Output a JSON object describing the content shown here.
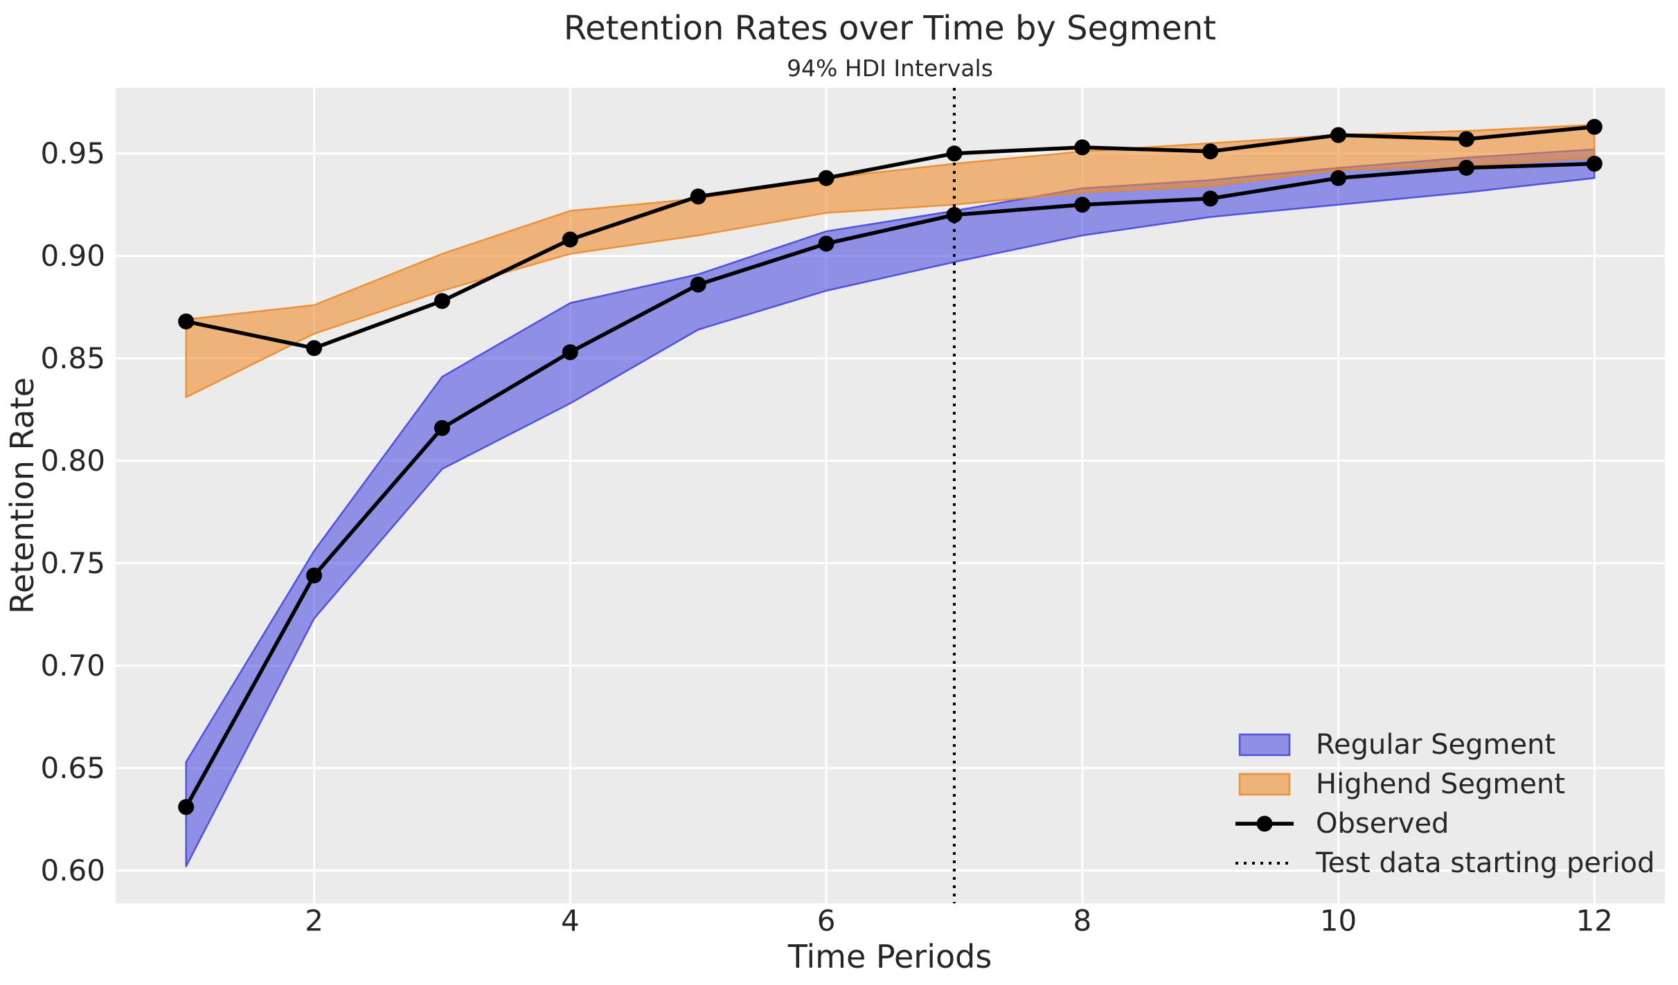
{
  "title": "Retention Rates over Time by Segment",
  "subtitle": "94% HDI Intervals",
  "chart_data": {
    "type": "line",
    "title": "Retention Rates over Time by Segment",
    "subtitle": "94% HDI Intervals",
    "xlabel": "Time Periods",
    "ylabel": "Retention Rate",
    "xlim": [
      0.45,
      12.55
    ],
    "ylim": [
      0.584,
      0.982
    ],
    "xticks": [
      2,
      4,
      6,
      8,
      10,
      12
    ],
    "ytick_values": [
      0.6,
      0.65,
      0.7,
      0.75,
      0.8,
      0.85,
      0.9,
      0.95
    ],
    "ytick_labels": [
      "0.60",
      "0.65",
      "0.70",
      "0.75",
      "0.80",
      "0.85",
      "0.90",
      "0.95"
    ],
    "grid": true,
    "legend_position": "lower right",
    "x": [
      1,
      2,
      3,
      4,
      5,
      6,
      7,
      8,
      9,
      10,
      11,
      12
    ],
    "bands": [
      {
        "name": "Regular Segment",
        "lo": [
          0.602,
          0.723,
          0.796,
          0.828,
          0.864,
          0.883,
          0.897,
          0.91,
          0.919,
          0.925,
          0.931,
          0.938
        ],
        "hi": [
          0.653,
          0.756,
          0.841,
          0.877,
          0.891,
          0.912,
          0.922,
          0.933,
          0.937,
          0.943,
          0.948,
          0.952
        ],
        "fill": "rgba(67,69,224,0.55)",
        "edge": "rgba(62,64,216,0.85)"
      },
      {
        "name": "Highend Segment",
        "lo": [
          0.831,
          0.862,
          0.883,
          0.901,
          0.91,
          0.921,
          0.925,
          0.931,
          0.934,
          0.942,
          0.944,
          0.948
        ],
        "hi": [
          0.869,
          0.876,
          0.901,
          0.922,
          0.928,
          0.938,
          0.945,
          0.951,
          0.955,
          0.959,
          0.961,
          0.964
        ],
        "fill": "rgba(239,142,46,0.60)",
        "edge": "rgba(235,135,35,0.85)"
      }
    ],
    "observed_series": [
      {
        "name": "Observed Highend",
        "values": [
          0.868,
          0.855,
          0.878,
          0.908,
          0.929,
          0.938,
          0.95,
          0.953,
          0.951,
          0.959,
          0.957,
          0.963
        ]
      },
      {
        "name": "Observed Regular",
        "values": [
          0.631,
          0.744,
          0.816,
          0.853,
          0.886,
          0.906,
          0.92,
          0.925,
          0.928,
          0.938,
          0.943,
          0.945
        ]
      }
    ],
    "vline": {
      "x": 7,
      "label": "Test data starting period",
      "style": "dotted"
    },
    "legend": {
      "entries": [
        {
          "label": "Regular Segment",
          "type": "band",
          "fill": "rgba(67,69,224,0.55)",
          "edge": "rgba(62,64,216,0.85)"
        },
        {
          "label": "Highend Segment",
          "type": "band",
          "fill": "rgba(239,142,46,0.60)",
          "edge": "rgba(235,135,35,0.85)"
        },
        {
          "label": "Observed",
          "type": "line-marker",
          "color": "#000000"
        },
        {
          "label": "Test data starting period",
          "type": "dotted-line",
          "color": "#000000"
        }
      ]
    }
  },
  "colors": {
    "figure_background": "#ffffff",
    "plot_background": "#ebebeb",
    "gridline": "#ffffff",
    "text": "#262626",
    "observed_line": "#000000",
    "regular_fill": "rgba(67,69,224,0.55)",
    "highend_fill": "rgba(239,142,46,0.60)"
  }
}
